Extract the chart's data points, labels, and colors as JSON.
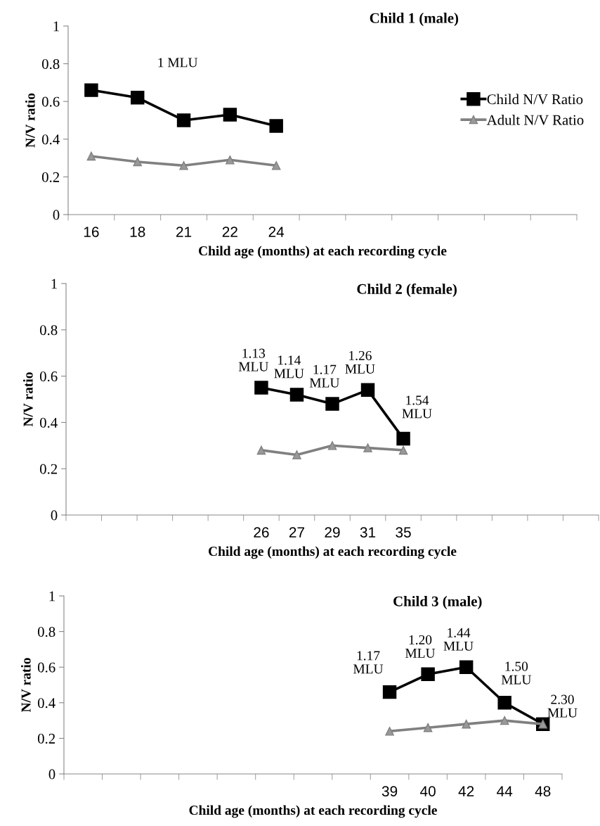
{
  "chart_data": [
    {
      "type": "line",
      "title": "Child 1 (male)",
      "xlabel": "Child age (months) at each recording cycle",
      "ylabel": "N/V ratio",
      "categories": [
        "16",
        "18",
        "21",
        "22",
        "24",
        null,
        null,
        null,
        null,
        null,
        null
      ],
      "series": [
        {
          "name": "Child N/V Ratio",
          "color": "#000000",
          "marker": "square",
          "values": [
            0.66,
            0.62,
            0.5,
            0.53,
            0.47,
            null,
            null,
            null,
            null,
            null,
            null
          ]
        },
        {
          "name": "Adult N/V Ratio",
          "color": "#808080",
          "marker": "triangle",
          "values": [
            0.31,
            0.28,
            0.26,
            0.29,
            0.26,
            null,
            null,
            null,
            null,
            null,
            null
          ]
        }
      ],
      "ylim": [
        0,
        1
      ],
      "yticks": [
        0,
        0.2,
        0.4,
        0.6,
        0.8,
        1
      ],
      "grid": false,
      "legend": "right",
      "annotations": [
        "1 MLU"
      ]
    },
    {
      "type": "line",
      "title": "Child 2 (female)",
      "xlabel": "Child age (months) at each recording cycle",
      "ylabel": "N/V ratio",
      "categories": [
        null,
        null,
        null,
        null,
        null,
        "26",
        "27",
        "29",
        "31",
        "35",
        null,
        null,
        null,
        null,
        null
      ],
      "series": [
        {
          "color": "#000000",
          "marker": "square",
          "values": [
            null,
            null,
            null,
            null,
            null,
            0.55,
            0.52,
            0.48,
            0.54,
            0.33,
            null,
            null,
            null,
            null,
            null
          ]
        },
        {
          "color": "#808080",
          "marker": "triangle",
          "values": [
            null,
            null,
            null,
            null,
            null,
            0.28,
            0.26,
            0.3,
            0.29,
            0.28,
            null,
            null,
            null,
            null,
            null
          ]
        }
      ],
      "ylim": [
        0,
        1
      ],
      "yticks": [
        0,
        0.2,
        0.4,
        0.6,
        0.8,
        1
      ],
      "grid": false,
      "legend": false,
      "annotations": [
        {
          "text": "1.13\nMLU",
          "x": "26",
          "y": 0.55
        },
        {
          "text": "1.14\nMLU",
          "x": "27",
          "y": 0.52
        },
        {
          "text": "1.17\nMLU",
          "x": "29",
          "y": 0.48
        },
        {
          "text": "1.26\nMLU",
          "x": "31",
          "y": 0.54
        },
        {
          "text": "1.54\nMLU",
          "x": "35",
          "y": 0.33
        }
      ]
    },
    {
      "type": "line",
      "title": "Child 3 (male)",
      "xlabel": "Child age (months) at each recording cycle",
      "ylabel": "N/V ratio",
      "categories": [
        null,
        null,
        null,
        null,
        null,
        null,
        null,
        null,
        "39",
        "40",
        "42",
        "44",
        "48"
      ],
      "series": [
        {
          "color": "#000000",
          "marker": "square",
          "values": [
            null,
            null,
            null,
            null,
            null,
            null,
            null,
            null,
            0.46,
            0.56,
            0.6,
            0.4,
            0.28
          ]
        },
        {
          "color": "#808080",
          "marker": "triangle",
          "values": [
            null,
            null,
            null,
            null,
            null,
            null,
            null,
            null,
            0.24,
            0.26,
            0.28,
            0.3,
            0.28
          ]
        }
      ],
      "ylim": [
        0,
        1
      ],
      "yticks": [
        0,
        0.2,
        0.4,
        0.6,
        0.8,
        1
      ],
      "grid": false,
      "legend": false,
      "annotations": [
        {
          "text": "1.17\nMLU",
          "x": "39",
          "y": 0.46
        },
        {
          "text": "1.20\nMLU",
          "x": "40",
          "y": 0.56
        },
        {
          "text": "1.44\nMLU",
          "x": "42",
          "y": 0.6
        },
        {
          "text": "1.50\nMLU",
          "x": "44",
          "y": 0.4
        },
        {
          "text": "2.30\nMLU",
          "x": "48",
          "y": 0.28
        }
      ]
    }
  ]
}
